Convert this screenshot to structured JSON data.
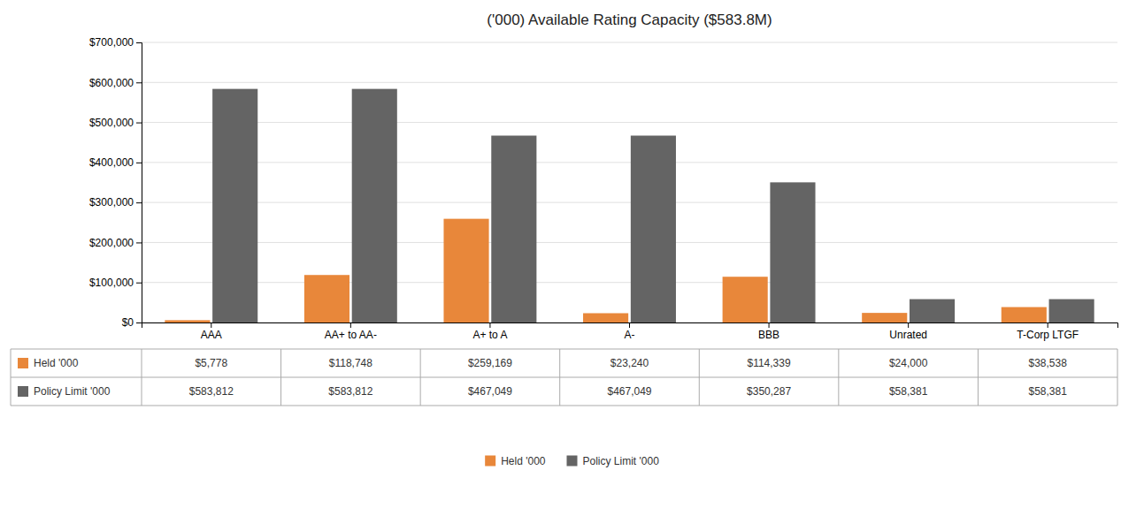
{
  "chart_data": {
    "type": "bar",
    "title": "('000) Available Rating Capacity ($583.8M)",
    "categories": [
      "AAA",
      "AA+ to AA-",
      "A+ to A",
      "A-",
      "BBB",
      "Unrated",
      "T-Corp LTGF"
    ],
    "series": [
      {
        "name": "Held '000",
        "color": "#E8873A",
        "values": [
          5778,
          118748,
          259169,
          23240,
          114339,
          24000,
          38538
        ],
        "value_labels": [
          "$5,778",
          "$118,748",
          "$259,169",
          "$23,240",
          "$114,339",
          "$24,000",
          "$38,538"
        ]
      },
      {
        "name": "Policy Limit '000",
        "color": "#646464",
        "values": [
          583812,
          583812,
          467049,
          467049,
          350287,
          58381,
          58381
        ],
        "value_labels": [
          "$583,812",
          "$583,812",
          "$467,049",
          "$467,049",
          "$350,287",
          "$58,381",
          "$58,381"
        ]
      }
    ],
    "ylim": [
      0,
      700000
    ],
    "yticks": [
      {
        "value": 0,
        "label": "$0"
      },
      {
        "value": 100000,
        "label": "$100,000"
      },
      {
        "value": 200000,
        "label": "$200,000"
      },
      {
        "value": 300000,
        "label": "$300,000"
      },
      {
        "value": 400000,
        "label": "$400,000"
      },
      {
        "value": 500000,
        "label": "$500,000"
      },
      {
        "value": 600000,
        "label": "$600,000"
      },
      {
        "value": 700000,
        "label": "$700,000"
      }
    ],
    "grid": true,
    "legend": "bottom"
  }
}
